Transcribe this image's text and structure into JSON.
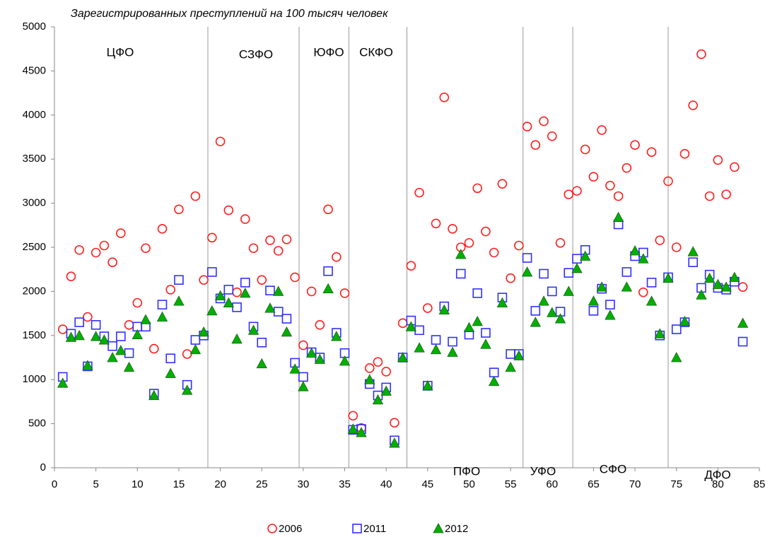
{
  "chart_data": {
    "type": "scatter",
    "title": "Зарегистрированных преступлений на 100 тысяч человек",
    "x": [
      1,
      2,
      3,
      4,
      5,
      6,
      7,
      8,
      9,
      10,
      11,
      12,
      13,
      14,
      15,
      16,
      17,
      18,
      19,
      20,
      21,
      22,
      23,
      24,
      25,
      26,
      27,
      28,
      29,
      30,
      31,
      32,
      33,
      34,
      35,
      36,
      37,
      38,
      39,
      40,
      41,
      42,
      43,
      44,
      45,
      46,
      47,
      48,
      49,
      50,
      51,
      52,
      53,
      54,
      55,
      56,
      57,
      58,
      59,
      60,
      61,
      62,
      63,
      64,
      65,
      66,
      67,
      68,
      69,
      70,
      71,
      72,
      73,
      74,
      75,
      76,
      77,
      78,
      79,
      80,
      81,
      82,
      83
    ],
    "series": [
      {
        "name": "2006",
        "color": "#ff2020",
        "marker": "circle",
        "values": [
          1570,
          2170,
          2470,
          1710,
          2440,
          2520,
          2330,
          2660,
          1620,
          1870,
          2490,
          1350,
          2710,
          2020,
          2930,
          1290,
          3080,
          2130,
          2610,
          3700,
          2920,
          1990,
          2820,
          2490,
          2130,
          2580,
          2460,
          2590,
          2160,
          1390,
          2000,
          1620,
          2930,
          2390,
          1980,
          590,
          450,
          1130,
          1200,
          1090,
          510,
          1640,
          2290,
          3120,
          1810,
          2770,
          4200,
          2710,
          2500,
          2550,
          3170,
          2680,
          2440,
          3220,
          2150,
          2520,
          3870,
          3660,
          3930,
          3760,
          2550,
          3100,
          3140,
          3610,
          3300,
          3830,
          3200,
          3080,
          3400,
          3660,
          1990,
          3580,
          2580,
          3250,
          2500,
          3560,
          4110,
          4690,
          3080,
          3490,
          3100,
          3410,
          2050
        ]
      },
      {
        "name": "2011",
        "color": "#3030ff",
        "marker": "square",
        "values": [
          1030,
          1520,
          1650,
          1150,
          1620,
          1490,
          1380,
          1490,
          1300,
          1600,
          1600,
          840,
          1850,
          1240,
          2130,
          940,
          1450,
          1500,
          2220,
          1920,
          2020,
          1820,
          2100,
          1600,
          1420,
          2010,
          1770,
          1690,
          1190,
          1030,
          1310,
          1250,
          2230,
          1530,
          1300,
          430,
          440,
          950,
          820,
          910,
          310,
          1250,
          1670,
          1560,
          930,
          1450,
          1830,
          1430,
          2200,
          1510,
          1980,
          1530,
          1080,
          1930,
          1290,
          1290,
          2380,
          1780,
          2200,
          2000,
          1770,
          2210,
          2370,
          2470,
          1780,
          2030,
          1850,
          2760,
          2220,
          2400,
          2440,
          2100,
          1500,
          2160,
          1570,
          1650,
          2330,
          2040,
          2190,
          2040,
          2020,
          2110,
          1430
        ]
      },
      {
        "name": "2012",
        "color": "#00b000",
        "marker": "triangle",
        "values": [
          960,
          1480,
          1500,
          1160,
          1490,
          1450,
          1250,
          1330,
          1140,
          1510,
          1680,
          820,
          1710,
          1070,
          1890,
          880,
          1340,
          1540,
          1780,
          1950,
          1870,
          1460,
          1980,
          1560,
          1180,
          1810,
          2000,
          1540,
          1120,
          920,
          1300,
          1230,
          2030,
          1490,
          1210,
          440,
          400,
          1000,
          770,
          870,
          280,
          1250,
          1600,
          1360,
          930,
          1340,
          1790,
          1310,
          2420,
          1590,
          1660,
          1400,
          980,
          1870,
          1140,
          1270,
          2220,
          1650,
          1890,
          1760,
          1690,
          2000,
          2260,
          2400,
          1890,
          2050,
          1730,
          2840,
          2050,
          2460,
          2370,
          1890,
          1520,
          2150,
          1250,
          1660,
          2450,
          1960,
          2150,
          2080,
          2050,
          2160,
          1640
        ]
      }
    ],
    "xlim": [
      0,
      85
    ],
    "xticks": [
      0,
      5,
      10,
      15,
      20,
      25,
      30,
      35,
      40,
      45,
      50,
      55,
      60,
      65,
      70,
      75,
      80,
      85
    ],
    "ylim": [
      0,
      5000
    ],
    "yticks": [
      0,
      500,
      1000,
      1500,
      2000,
      2500,
      3000,
      3500,
      4000,
      4500,
      5000
    ],
    "dividers": [
      18.5,
      29.5,
      35.5,
      42.5,
      56.5,
      62.5,
      74
    ],
    "regions": [
      "ЦФО",
      "СЗФО",
      "ЮФО",
      "СКФО",
      "ПФО",
      "УФО",
      "СФО",
      "ДФО"
    ],
    "legend": "bottom"
  }
}
